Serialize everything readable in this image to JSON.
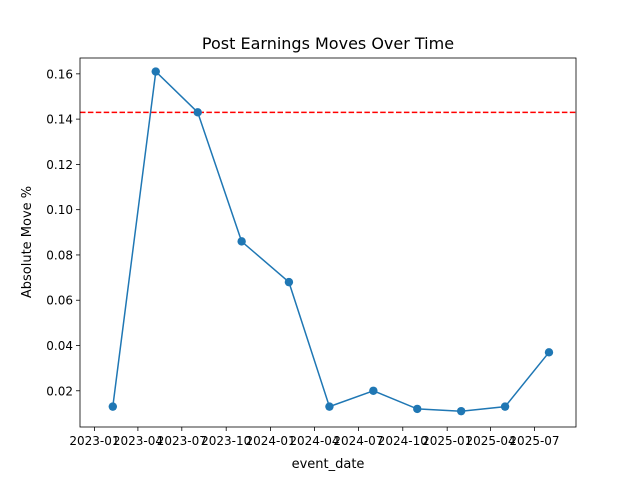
{
  "chart_data": {
    "type": "line",
    "title": "Post Earnings Moves Over Time",
    "xlabel": "event_date",
    "ylabel": "Absolute Move %",
    "ylim": [
      0.004,
      0.167
    ],
    "xlim": [
      "2022-12-02",
      "2025-09-25"
    ],
    "x_ticks": [
      "2023-01-01",
      "2023-04-01",
      "2023-07-01",
      "2023-10-01",
      "2024-01-01",
      "2024-04-01",
      "2024-07-01",
      "2024-10-01",
      "2025-01-01",
      "2025-04-01",
      "2025-07-01"
    ],
    "x_tick_labels": [
      "2023-01",
      "2023-04",
      "2023-07",
      "2023-10",
      "2024-01",
      "2024-04",
      "2024-07",
      "2024-10",
      "2025-01",
      "2025-04",
      "2025-07"
    ],
    "y_ticks": [
      0.02,
      0.04,
      0.06,
      0.08,
      0.1,
      0.12,
      0.14,
      0.16
    ],
    "y_tick_labels": [
      "0.02",
      "0.04",
      "0.06",
      "0.08",
      "0.10",
      "0.12",
      "0.14",
      "0.16"
    ],
    "series": [
      {
        "color": "#1f77b4",
        "marker": "circle",
        "x": [
          "2023-02-08",
          "2023-05-08",
          "2023-08-03",
          "2023-11-02",
          "2024-02-08",
          "2024-05-02",
          "2024-08-01",
          "2024-10-31",
          "2025-01-30",
          "2025-05-01",
          "2025-07-31"
        ],
        "y": [
          0.013,
          0.161,
          0.143,
          0.086,
          0.068,
          0.013,
          0.02,
          0.012,
          0.011,
          0.013,
          0.037
        ]
      }
    ],
    "reference_lines": [
      {
        "orientation": "horizontal",
        "y": 0.143,
        "color": "#ff0000",
        "style": "dashed"
      }
    ],
    "grid": false,
    "legend": "none"
  }
}
